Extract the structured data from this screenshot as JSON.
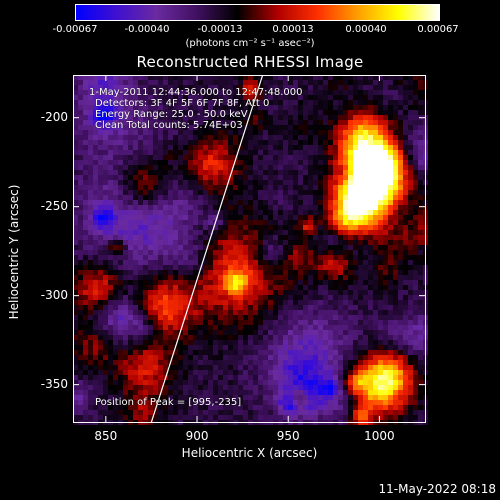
{
  "colorbar": {
    "ticks": [
      "-0.00067",
      "-0.00040",
      "-0.00013",
      "0.00013",
      "0.00040",
      "0.00067"
    ],
    "label": "(photons cm⁻² s⁻¹ asec⁻²)",
    "colors": [
      "#0000ff",
      "#4010d0",
      "#6a2aa0",
      "#401060",
      "#000000",
      "#b00000",
      "#ff3000",
      "#ffa000",
      "#ffff00",
      "#ffffff"
    ]
  },
  "chart_data": {
    "type": "heatmap",
    "title": "Reconstructed RHESSI Image",
    "xlabel": "Heliocentric X (arcsec)",
    "ylabel": "Heliocentric Y (arcsec)",
    "xlim": [
      832,
      1025
    ],
    "ylim": [
      -371,
      -176
    ],
    "xticks": [
      850,
      900,
      950,
      1000
    ],
    "yticks": [
      -200,
      -250,
      -300,
      -350
    ],
    "value_range": [
      -0.00067,
      0.00067
    ],
    "peak": [
      995,
      -235
    ],
    "annotations": {
      "time": "1-May-2011 12:44:36.000  to 12:47:48.000",
      "detectors": "Detectors: 3F 4F 5F 6F 7F 8F, Att 0",
      "energy": "Energy Range: 25.0 - 50.0 keV",
      "method": "Clean     Total counts: 5.74E+03",
      "peak_text": "Position of Peak = [995,-235]"
    }
  },
  "footer": "11-May-2022 08:18"
}
